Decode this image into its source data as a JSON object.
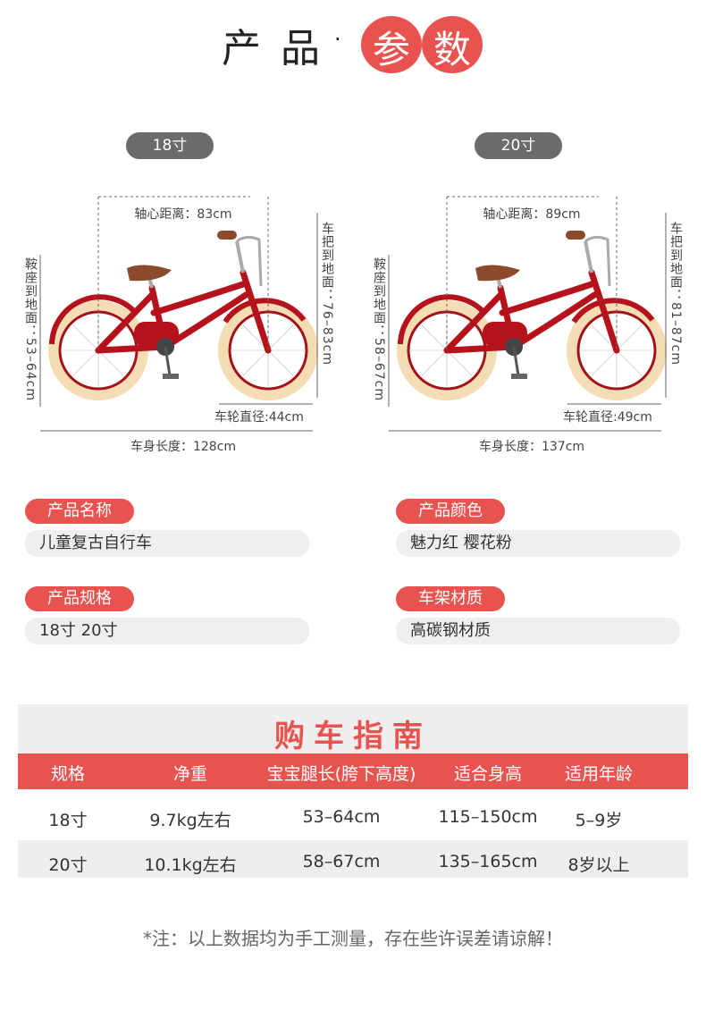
{
  "header": {
    "prefix": "产 品",
    "dot": "·",
    "highlight": [
      "参",
      "数"
    ]
  },
  "bikes": [
    {
      "size": "18寸",
      "wheelbase": "轴心距离：83cm",
      "handlebar": "车把到地面：76–83cm",
      "saddle": "鞍座到地面：53–64cm",
      "wheel": "车轮直径:44cm",
      "length": "车身长度：128cm"
    },
    {
      "size": "20寸",
      "wheelbase": "轴心距离：89cm",
      "handlebar": "车把到地面：81–87cm",
      "saddle": "鞍座到地面：58–67cm",
      "wheel": "车轮直径:49cm",
      "length": "车身长度：137cm"
    }
  ],
  "specs": [
    {
      "label": "产品名称",
      "value": "儿童复古自行车"
    },
    {
      "label": "产品颜色",
      "value": "魅力红  樱花粉"
    },
    {
      "label": "产品规格",
      "value": "18寸 20寸"
    },
    {
      "label": "车架材质",
      "value": "高碳钢材质"
    }
  ],
  "guide": {
    "title": "购车指南",
    "headers": [
      "规格",
      "净重",
      "宝宝腿长(胯下高度)",
      "适合身高",
      "适用年龄"
    ],
    "rows": [
      [
        "18寸",
        "9.7kg左右",
        "53–64cm",
        "115–150cm",
        "5–9岁"
      ],
      [
        "20寸",
        "10.1kg左右",
        "58–67cm",
        "135–165cm",
        "8岁以上"
      ]
    ]
  },
  "note": "*注：以上数据均为手工测量，存在些许误差请谅解！"
}
